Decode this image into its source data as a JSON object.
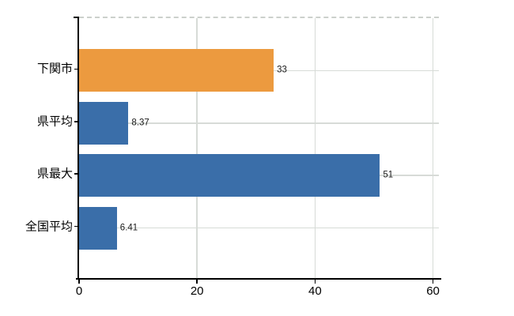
{
  "chart_data": {
    "type": "bar",
    "orientation": "horizontal",
    "title": "",
    "xlabel": "",
    "ylabel": "",
    "categories": [
      "下関市",
      "県平均",
      "県最大",
      "全国平均"
    ],
    "values": [
      33,
      8.37,
      51,
      6.41
    ],
    "value_labels": [
      "33",
      "8.37",
      "51",
      "6.41"
    ],
    "bar_colors": [
      "#EC9A3F",
      "#3A6EA9",
      "#3A6EA9",
      "#3A6EA9"
    ],
    "x_ticks": [
      "0",
      "20",
      "40",
      "60"
    ],
    "x_tick_values": [
      0,
      20,
      40,
      60
    ],
    "xlim": [
      0,
      61
    ],
    "grid": true,
    "legend": "none",
    "colors": {
      "bar_highlight": "#EC9A3F",
      "bar_default": "#3A6EA9",
      "gridline": "#D7DBD7",
      "axis": "#000000",
      "background": "#FFFFFF",
      "text": "#000000"
    }
  }
}
